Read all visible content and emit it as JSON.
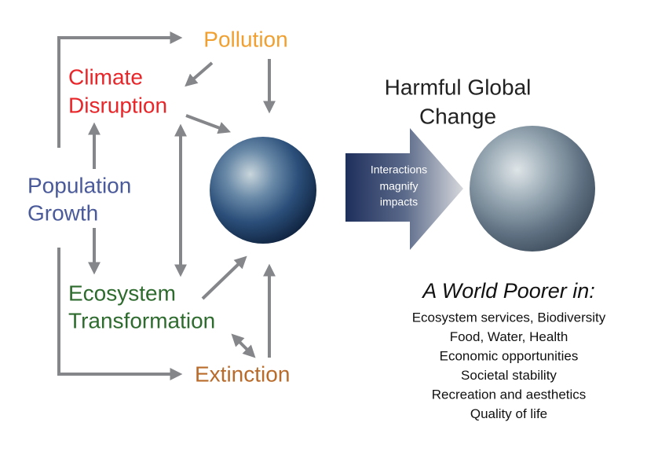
{
  "nodes": [
    {
      "lines": [
        "Pollution"
      ]
    },
    {
      "lines": [
        "Climate",
        "Disruption"
      ]
    },
    {
      "lines": [
        "Population",
        "Growth"
      ]
    },
    {
      "lines": [
        "Ecosystem",
        "Transformation"
      ]
    },
    {
      "lines": [
        "Extinction"
      ]
    }
  ],
  "arrow_label": {
    "lines": [
      "Interactions",
      "magnify",
      "impacts"
    ]
  },
  "title": {
    "lines": [
      "Harmful Global",
      "Change"
    ]
  },
  "outcome": {
    "heading": "A World Poorer in:",
    "items": [
      "Ecosystem services, Biodiversity",
      "Food, Water, Health",
      "Economic opportunities",
      "Societal stability",
      "Recreation and aesthetics",
      "Quality of life"
    ]
  }
}
